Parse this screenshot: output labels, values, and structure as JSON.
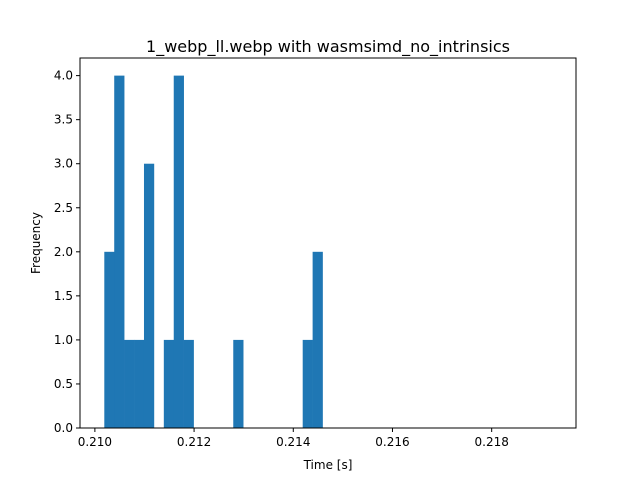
{
  "chart_data": {
    "type": "bar",
    "subtype": "histogram",
    "title": "1_webp_ll.webp with wasmsimd_no_intrinsics",
    "xlabel": "Time [s]",
    "ylabel": "Frequency",
    "xlim": [
      0.2097,
      0.2197
    ],
    "ylim": [
      0,
      4.2
    ],
    "xticks": [
      "0.210",
      "0.212",
      "0.214",
      "0.216",
      "0.218"
    ],
    "xtick_values": [
      0.21,
      0.212,
      0.214,
      0.216,
      0.218
    ],
    "yticks": [
      "0.0",
      "0.5",
      "1.0",
      "1.5",
      "2.0",
      "2.5",
      "3.0",
      "3.5",
      "4.0"
    ],
    "ytick_values": [
      0,
      0.5,
      1.0,
      1.5,
      2.0,
      2.5,
      3.0,
      3.5,
      4.0
    ],
    "bin_start": 0.21019,
    "bin_width": 0.0002,
    "counts": [
      2,
      4,
      1,
      1,
      3,
      0,
      1,
      4,
      1,
      0,
      0,
      0,
      0,
      1,
      0,
      0,
      0,
      0,
      0,
      0,
      1,
      2
    ],
    "color": "#1f77b4",
    "grid": false,
    "legend": "none"
  }
}
